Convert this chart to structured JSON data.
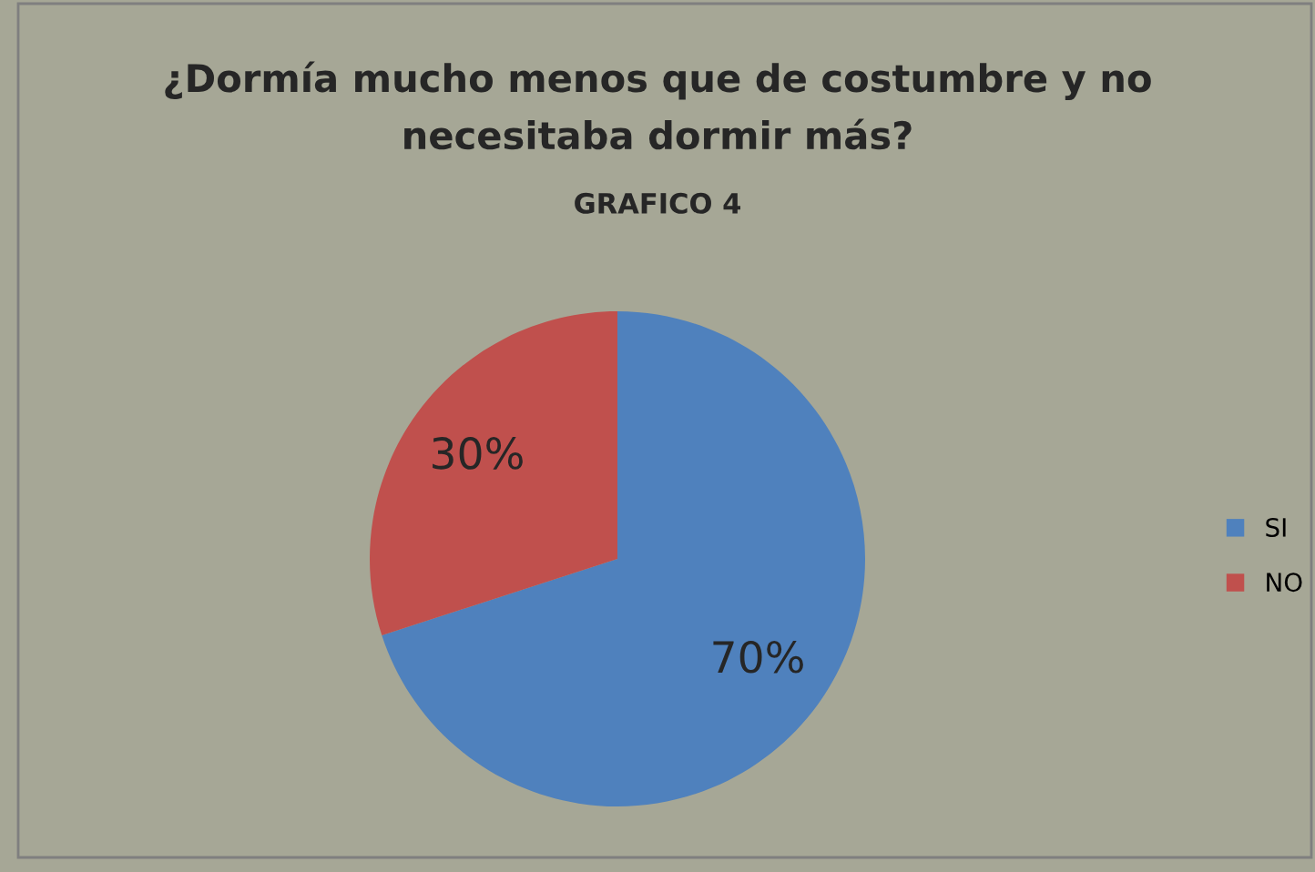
{
  "chart_data": {
    "type": "pie",
    "title": "¿Dormía mucho menos que de costumbre y no\nnecesitaba dormir más?",
    "subtitle": "GRAFICO 4",
    "categories": [
      "SI",
      "NO"
    ],
    "values": [
      70,
      30
    ],
    "colors": [
      "#4f81bd",
      "#c0504d"
    ],
    "value_labels": [
      "70%",
      "30%"
    ],
    "legend": "right"
  }
}
